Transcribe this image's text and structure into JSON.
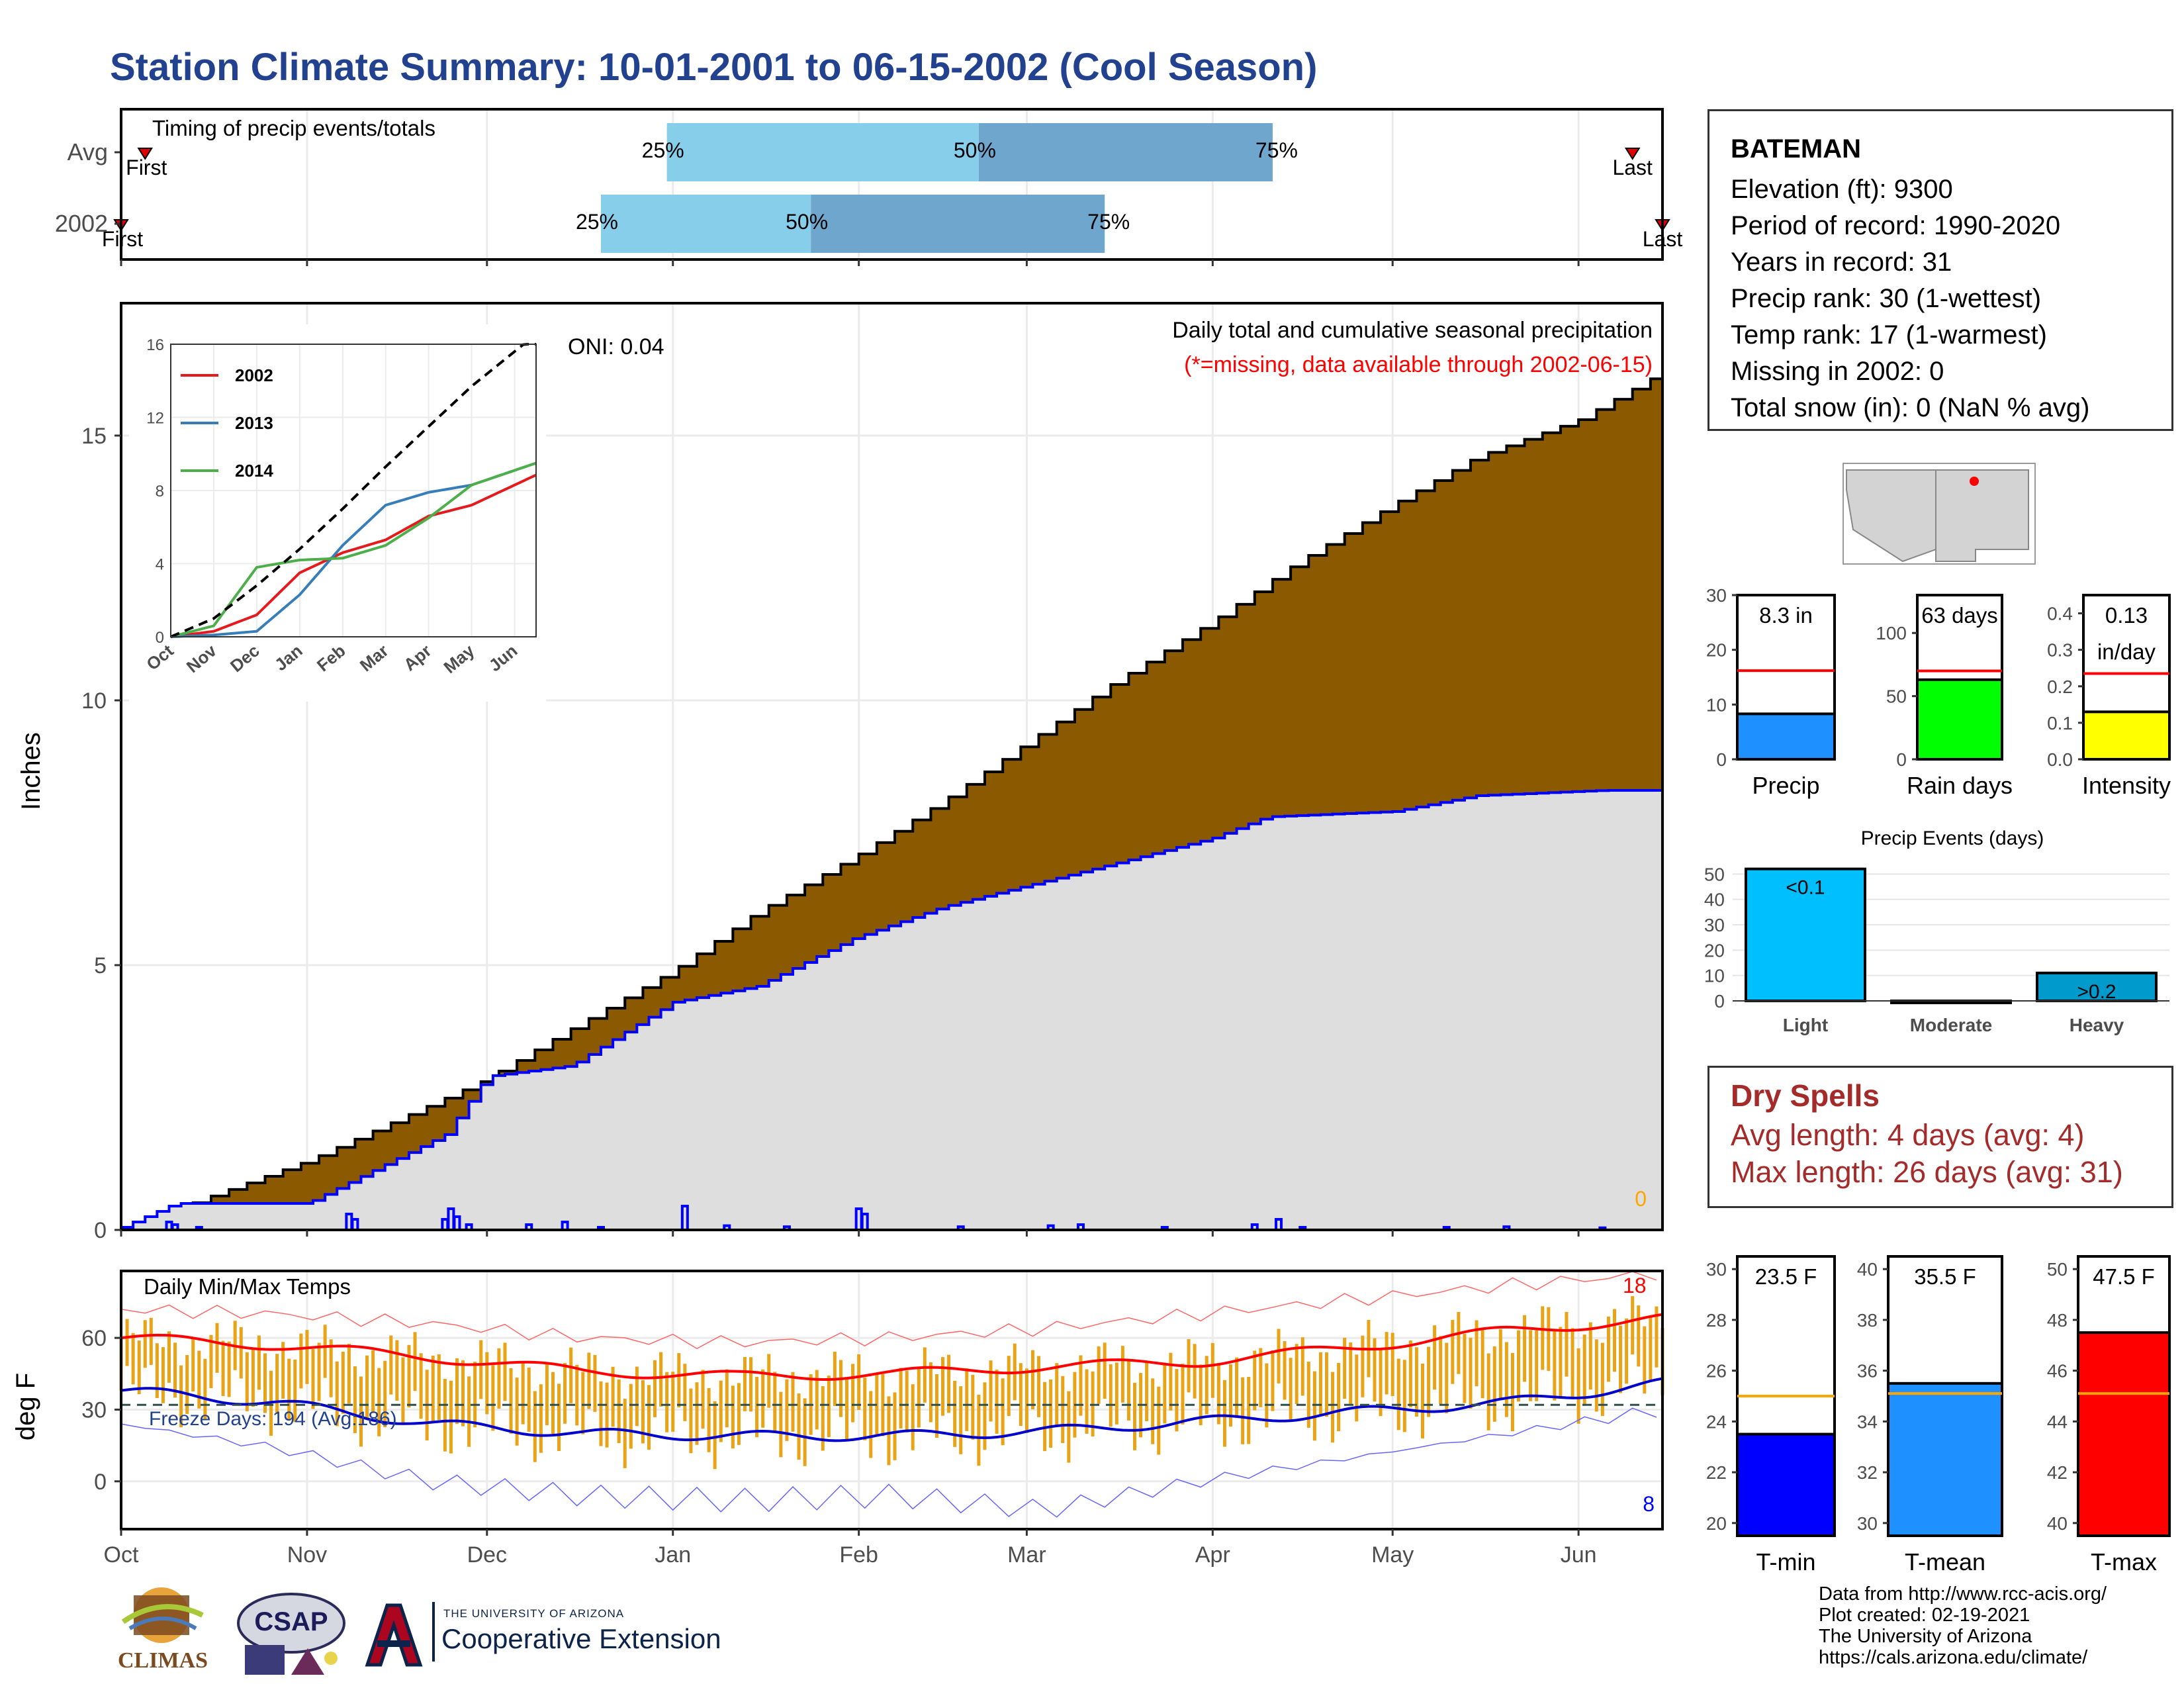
{
  "title": "Station Climate Summary: 10-01-2001 to 06-15-2002 (Cool Season)",
  "station": {
    "name": "BATEMAN",
    "lines": [
      "Elevation (ft): 9300",
      "Period of record: 1990-2020",
      "Years in record: 31",
      "Precip rank: 30 (1-wettest)",
      "Temp rank: 17 (1-warmest)",
      "Missing in 2002: 0",
      "Total snow (in): 0 (NaN % avg)"
    ]
  },
  "dry_spells": {
    "heading": "Dry Spells",
    "avg": "Avg length: 4 days (avg: 4)",
    "max": "Max length: 26 days (avg: 31)"
  },
  "footer": [
    "Data from http://www.rcc-acis.org/",
    "Plot created: 02-19-2021",
    "The University of Arizona",
    "https://cals.arizona.edu/climate/"
  ],
  "logos": {
    "climas": "CLIMAS",
    "csap": "CSAP",
    "uofa_small": "THE UNIVERSITY OF ARIZONA",
    "uofa_big": "Cooperative Extension"
  },
  "colors": {
    "title": "#22418f",
    "cumulative_fill": "#8b5a00",
    "avg_fill": "#dedede",
    "daily_bars": "#0000ff",
    "quartile_light": "#87ceeb",
    "quartile_dark": "#6fa6cd",
    "temp_bars": "#e8a317",
    "tmax_line": "#ff0000",
    "tmin_line": "#0000cd"
  },
  "chart_data": [
    {
      "id": "timing",
      "type": "bar",
      "title": "Timing of precip events/totals",
      "categories": [
        "Avg",
        "2002"
      ],
      "x_ticks": [
        "Oct",
        "Nov",
        "Dec",
        "Jan",
        "Feb",
        "Mar",
        "Apr",
        "May",
        "Jun"
      ],
      "rows": [
        {
          "label": "Avg",
          "first": "2001-10-05",
          "q25": "2001-12-31",
          "q50": "2002-02-21",
          "q75": "2002-04-11",
          "last": "2002-06-10",
          "first_label": "First",
          "last_label": "Last",
          "q25_label": "25%",
          "q50_label": "50%",
          "q75_label": "75%"
        },
        {
          "label": "2002",
          "first": "2001-10-01",
          "q25": "2001-12-20",
          "q50": "2002-01-24",
          "q75": "2002-03-14",
          "last": "2002-06-15",
          "first_label": "First",
          "last_label": "Last",
          "q25_label": "25%",
          "q50_label": "50%",
          "q75_label": "75%"
        }
      ]
    },
    {
      "id": "precip",
      "type": "area",
      "ylabel": "Inches",
      "yticks": [
        0,
        5,
        10,
        15
      ],
      "ylim": [
        0,
        17.5
      ],
      "annotation": "Daily total and cumulative seasonal precipitation",
      "annotation_red": "(*=missing, data available through 2002-06-15)",
      "oni": "ONI: 0.04",
      "corner_label": "0",
      "avg_cumulative": {
        "dates": [
          "2001-10-01",
          "2001-10-15",
          "2001-11-01",
          "2001-11-30",
          "2001-12-15",
          "2002-01-01",
          "2002-01-15",
          "2002-02-01",
          "2002-02-15",
          "2002-03-01",
          "2002-03-15",
          "2002-04-01",
          "2002-04-15",
          "2002-05-01",
          "2002-05-15",
          "2002-06-01",
          "2002-06-15"
        ],
        "values": [
          0,
          0.6,
          1.3,
          2.8,
          3.8,
          4.9,
          6.0,
          7.1,
          8.1,
          9.2,
          10.3,
          11.5,
          12.6,
          13.7,
          14.6,
          15.3,
          16.2
        ]
      },
      "cumulative_2002": {
        "dates": [
          "2001-10-01",
          "2001-10-10",
          "2001-11-01",
          "2001-11-24",
          "2001-12-01",
          "2001-12-15",
          "2002-01-01",
          "2002-01-15",
          "2002-01-31",
          "2002-02-15",
          "2002-03-01",
          "2002-03-15",
          "2002-04-01",
          "2002-04-10",
          "2002-05-01",
          "2002-05-15",
          "2002-06-05",
          "2002-06-15"
        ],
        "values": [
          0.05,
          0.5,
          0.5,
          1.8,
          2.9,
          3.1,
          4.3,
          4.6,
          5.5,
          6.1,
          6.5,
          6.9,
          7.4,
          7.8,
          7.9,
          8.2,
          8.3,
          8.3
        ]
      },
      "daily_dates": [
        "2001-10-09",
        "2001-10-10",
        "2001-10-14",
        "2001-11-08",
        "2001-11-09",
        "2001-11-24",
        "2001-11-25",
        "2001-11-26",
        "2001-11-28",
        "2001-12-08",
        "2001-12-14",
        "2001-12-20",
        "2002-01-03",
        "2002-01-10",
        "2002-01-20",
        "2002-02-01",
        "2002-02-02",
        "2002-02-18",
        "2002-03-05",
        "2002-03-10",
        "2002-03-24",
        "2002-04-08",
        "2002-04-12",
        "2002-04-16",
        "2002-05-10",
        "2002-05-20",
        "2002-06-05"
      ],
      "daily_values": [
        0.15,
        0.1,
        0.05,
        0.3,
        0.2,
        0.2,
        0.4,
        0.25,
        0.1,
        0.1,
        0.15,
        0.05,
        0.45,
        0.08,
        0.06,
        0.4,
        0.3,
        0.06,
        0.08,
        0.1,
        0.05,
        0.1,
        0.2,
        0.05,
        0.05,
        0.06,
        0.04
      ]
    },
    {
      "id": "inset",
      "type": "line",
      "yticks": [
        0,
        4,
        8,
        12,
        16
      ],
      "xticks": [
        "Oct",
        "Nov",
        "Dec",
        "Jan",
        "Feb",
        "Mar",
        "Apr",
        "May",
        "Jun"
      ],
      "series": [
        {
          "name": "2002",
          "color": "#e41a1c",
          "values": [
            0,
            0.3,
            1.2,
            3.5,
            4.6,
            5.3,
            6.6,
            7.2,
            8.3
          ]
        },
        {
          "name": "2013",
          "color": "#377eb8",
          "values": [
            0,
            0.1,
            0.3,
            2.3,
            5.0,
            7.2,
            7.9,
            8.3,
            9.1
          ]
        },
        {
          "name": "2014",
          "color": "#4daf4a",
          "values": [
            0,
            0.6,
            3.8,
            4.2,
            4.3,
            5.0,
            6.5,
            8.3,
            9.1
          ]
        },
        {
          "name": "",
          "color": "#000000",
          "dashed": true,
          "values": [
            0,
            1.0,
            2.8,
            4.8,
            7.0,
            9.3,
            11.5,
            13.7,
            15.6
          ]
        }
      ]
    },
    {
      "id": "temps",
      "type": "line",
      "title": "Daily Min/Max Temps",
      "ylabel": "deg F",
      "yticks": [
        0,
        30,
        60
      ],
      "ylim": [
        -20,
        88
      ],
      "freeze_label": "Freeze Days: 194 (Avg:186)",
      "freeze_line": 32,
      "corner_top": "18",
      "corner_bottom": "8",
      "xticks": [
        "Oct",
        "Nov",
        "Dec",
        "Jan",
        "Feb",
        "Mar",
        "Apr",
        "May",
        "Jun"
      ],
      "avg_tmax": [
        60,
        57,
        52,
        46,
        44,
        45,
        48,
        50,
        56,
        63,
        68
      ],
      "avg_tmin": [
        38,
        33,
        24,
        20,
        19,
        19,
        21,
        25,
        29,
        33,
        41
      ],
      "record_high": [
        72,
        70,
        66,
        60,
        58,
        60,
        64,
        70,
        76,
        82,
        87
      ],
      "record_low": [
        24,
        14,
        0,
        -6,
        -8,
        -6,
        -12,
        0,
        10,
        20,
        30
      ]
    },
    {
      "id": "precip_small",
      "type": "bar",
      "category": "Precip",
      "label": "8.3 in",
      "value": 8.3,
      "avg": 16.2,
      "ylim": [
        0,
        30
      ],
      "yticks": [
        0,
        10,
        20,
        30
      ],
      "color": "#1e90ff"
    },
    {
      "id": "raindays_small",
      "type": "bar",
      "category": "Rain days",
      "label": "63 days",
      "value": 63,
      "avg": 70,
      "ylim": [
        0,
        130
      ],
      "yticks": [
        0,
        50,
        100
      ],
      "color": "#00ff00"
    },
    {
      "id": "intensity_small",
      "type": "bar",
      "category": "Intensity",
      "label": "0.13",
      "label2": "in/day",
      "value": 0.13,
      "avg": 0.235,
      "ylim": [
        0,
        0.45
      ],
      "yticks": [
        0.0,
        0.1,
        0.2,
        0.3,
        0.4
      ],
      "color": "#ffff00"
    },
    {
      "id": "events",
      "type": "bar",
      "title": "Precip Events (days)",
      "categories": [
        "Light",
        "Moderate",
        "Heavy"
      ],
      "values": [
        52,
        0,
        11
      ],
      "labels": [
        "<0.1",
        "",
        ">0.2"
      ],
      "colors": [
        "#00bfff",
        "#00bfff",
        "#009acd"
      ],
      "yticks": [
        0,
        10,
        20,
        30,
        40,
        50
      ],
      "ylim": [
        0,
        54
      ]
    },
    {
      "id": "tmin_small",
      "type": "bar",
      "category": "T-min",
      "label": "23.5 F",
      "value": 23.5,
      "avg": 25.0,
      "ylim": [
        19.5,
        30.5
      ],
      "yticks": [
        20,
        22,
        24,
        26,
        28,
        30
      ],
      "color": "#0000ff"
    },
    {
      "id": "tmean_small",
      "type": "bar",
      "category": "T-mean",
      "label": "35.5 F",
      "value": 35.5,
      "avg": 35.1,
      "ylim": [
        29.5,
        40.5
      ],
      "yticks": [
        30,
        32,
        34,
        36,
        38,
        40
      ],
      "color": "#1e90ff"
    },
    {
      "id": "tmax_small",
      "type": "bar",
      "category": "T-max",
      "label": "47.5 F",
      "value": 47.5,
      "avg": 45.1,
      "ylim": [
        39.5,
        50.5
      ],
      "yticks": [
        40,
        42,
        44,
        46,
        48,
        50
      ],
      "color": "#ff0000"
    }
  ]
}
